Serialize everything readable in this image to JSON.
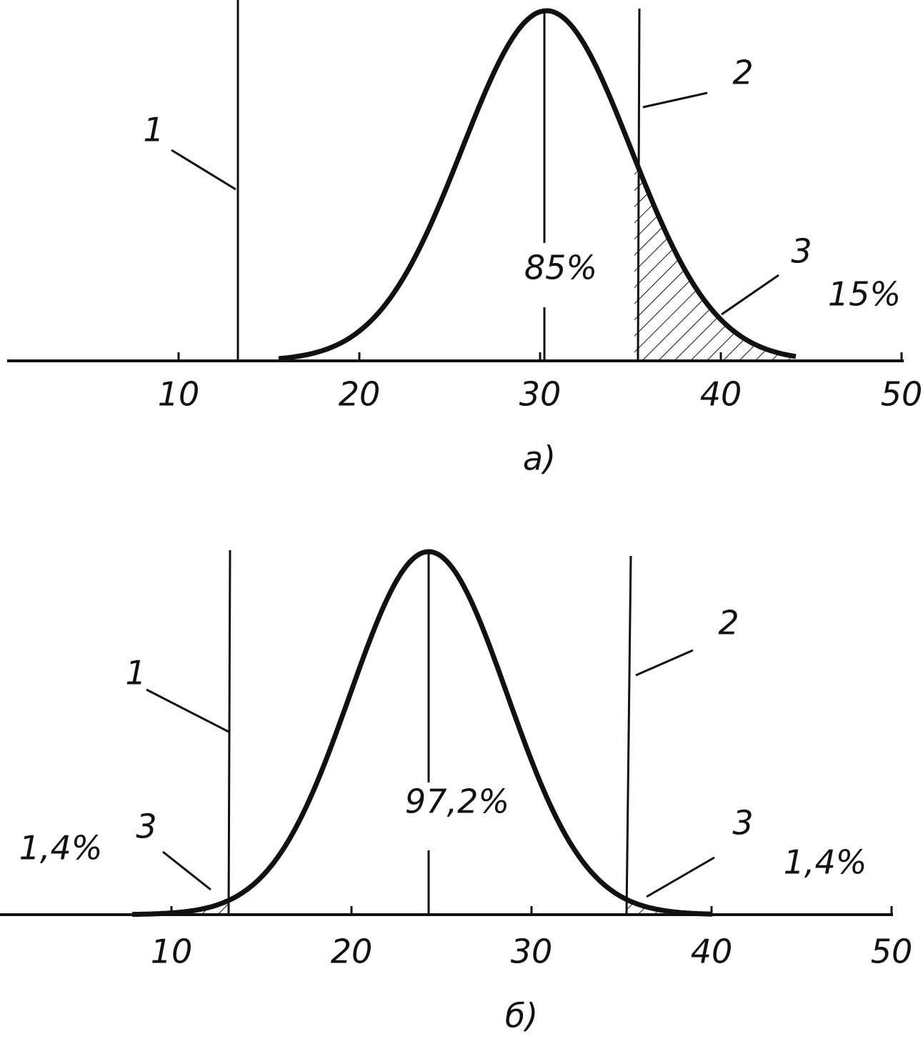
{
  "panels": [
    {
      "caption": "а)",
      "ticks": [
        "10",
        "20",
        "30",
        "40",
        "50"
      ],
      "center_label": "85%",
      "right_label": "15%",
      "callouts": [
        "1",
        "2",
        "3"
      ]
    },
    {
      "caption": "б)",
      "ticks": [
        "10",
        "20",
        "30",
        "40",
        "50"
      ],
      "center_label": "97,2%",
      "left_label": "1,4%",
      "right_label": "1,4%",
      "callouts": [
        "1",
        "2",
        "3",
        "3"
      ]
    }
  ]
}
